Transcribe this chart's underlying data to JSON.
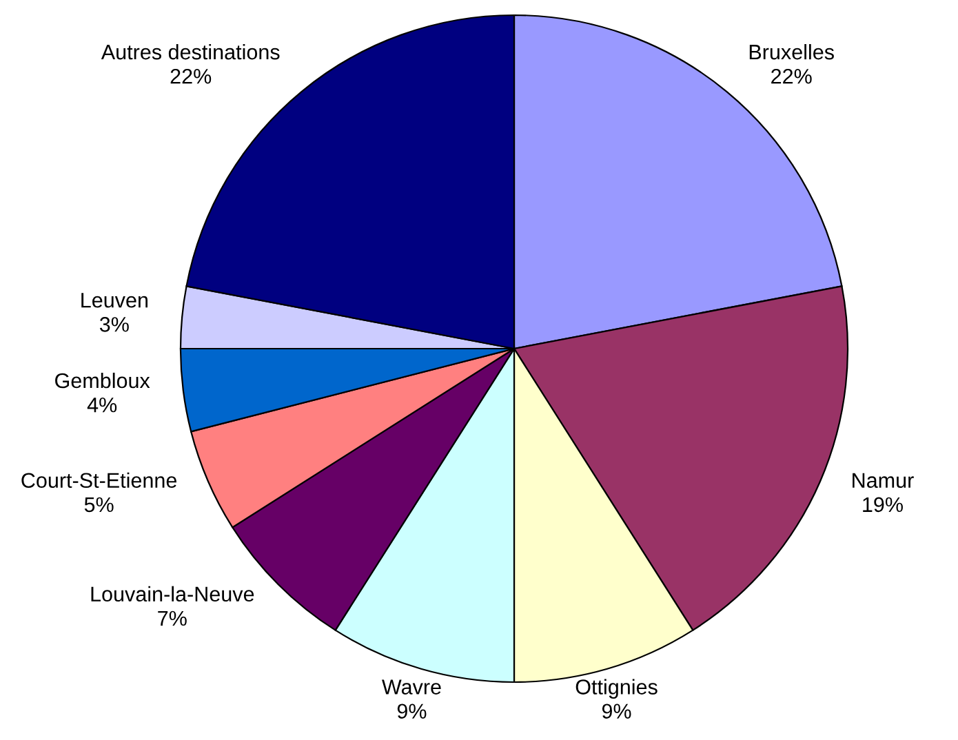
{
  "chart_data": {
    "type": "pie",
    "categories": [
      "Bruxelles",
      "Namur",
      "Ottignies",
      "Wavre",
      "Louvain-la-Neuve",
      "Court-St-Etienne",
      "Gembloux",
      "Leuven",
      "Autres destinations"
    ],
    "values": [
      22,
      19,
      9,
      9,
      7,
      5,
      4,
      3,
      22
    ],
    "value_labels": [
      "22%",
      "19%",
      "9%",
      "9%",
      "7%",
      "5%",
      "4%",
      "3%",
      "22%"
    ],
    "colors": [
      "#9999ff",
      "#993366",
      "#ffffcc",
      "#ccffff",
      "#660066",
      "#ff8080",
      "#0066cc",
      "#ccccff",
      "#000080"
    ]
  }
}
